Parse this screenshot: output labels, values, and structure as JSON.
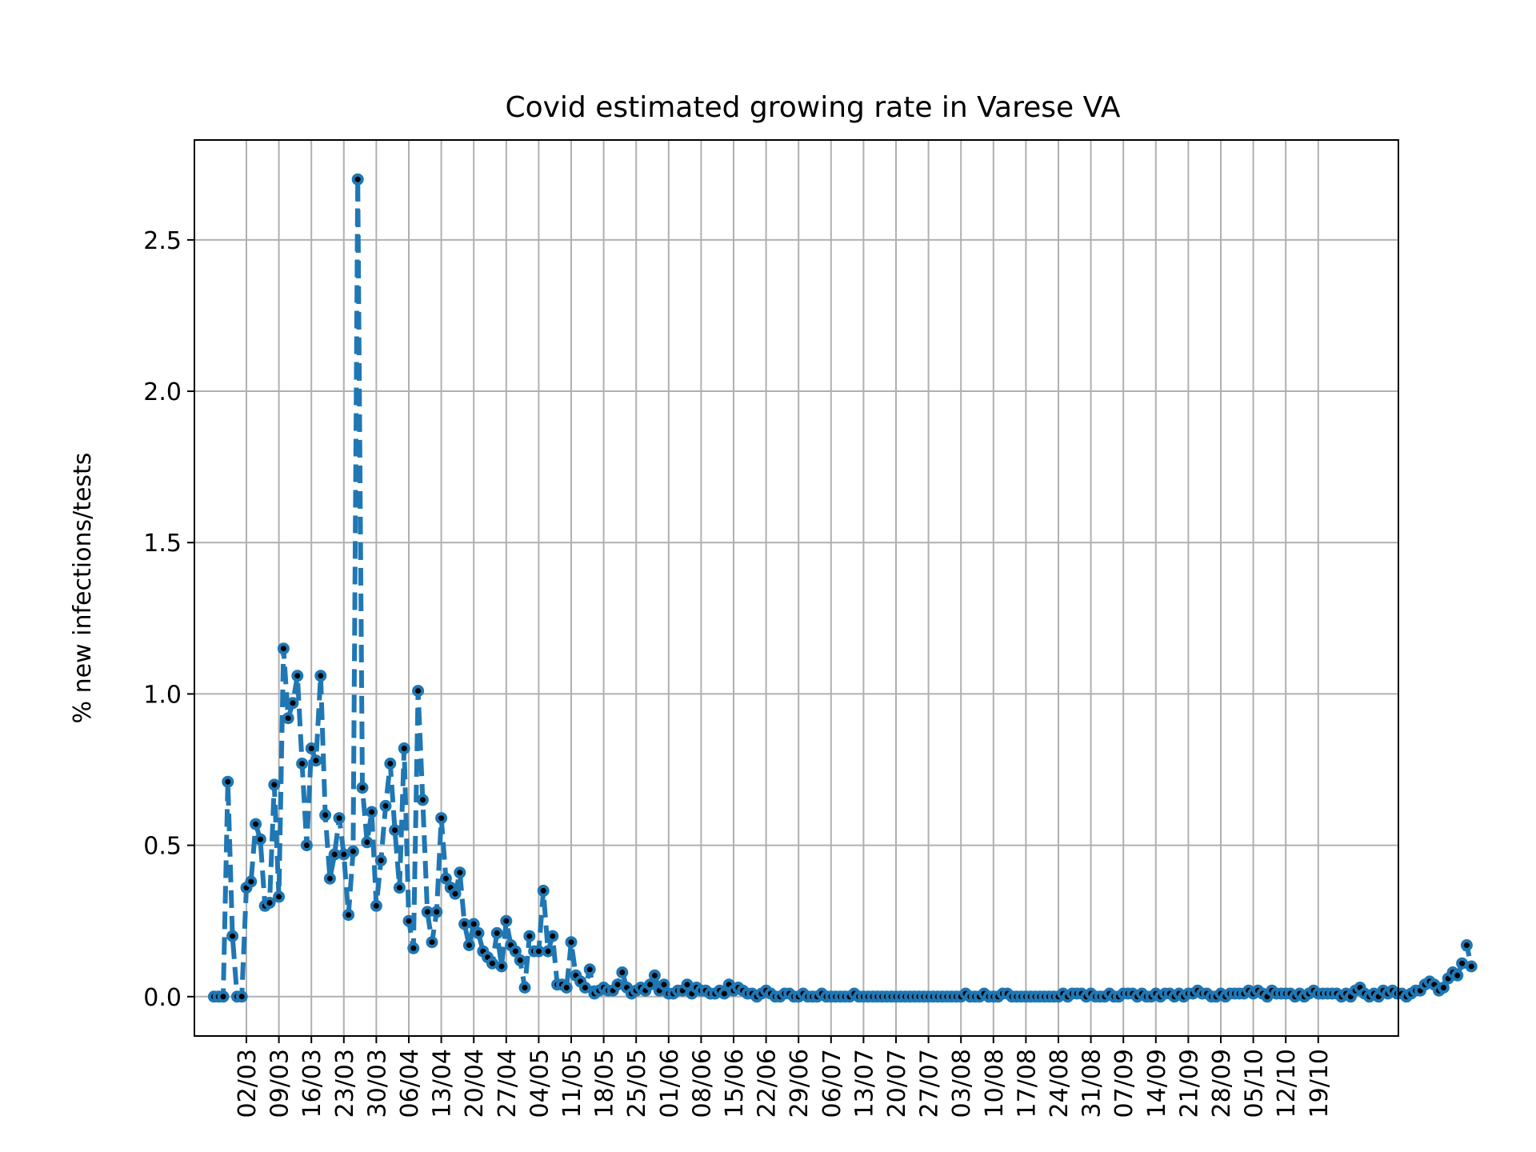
{
  "chart_data": {
    "type": "line",
    "title": "Covid estimated growing rate in Varese VA",
    "xlabel": "",
    "ylabel": "% new infections/tests",
    "grid": true,
    "legend": "none",
    "ylim": [
      -0.13,
      2.83
    ],
    "yticks": [
      0.0,
      0.5,
      1.0,
      1.5,
      2.0,
      2.5
    ],
    "ytick_labels": [
      "0.0",
      "0.5",
      "1.0",
      "1.5",
      "2.0",
      "2.5"
    ],
    "x_start": "24/02",
    "x_end": "20/10",
    "xticks": [
      "02/03",
      "09/03",
      "16/03",
      "23/03",
      "30/03",
      "06/04",
      "13/04",
      "20/04",
      "27/04",
      "04/05",
      "11/05",
      "18/05",
      "25/05",
      "01/06",
      "08/06",
      "15/06",
      "22/06",
      "29/06",
      "06/07",
      "13/07",
      "20/07",
      "27/07",
      "03/08",
      "10/08",
      "17/08",
      "24/08",
      "31/08",
      "07/09",
      "14/09",
      "21/09",
      "28/09",
      "05/10",
      "12/10",
      "19/10"
    ],
    "series": [
      {
        "name": "",
        "color": "#1f77b4",
        "marker_color": "#000000",
        "values": [
          0.0,
          0.0,
          0.0,
          0.71,
          0.2,
          0.0,
          0.0,
          0.36,
          0.38,
          0.57,
          0.52,
          0.3,
          0.31,
          0.7,
          0.33,
          1.15,
          0.92,
          0.97,
          1.06,
          0.77,
          0.5,
          0.82,
          0.78,
          1.06,
          0.6,
          0.39,
          0.47,
          0.59,
          0.47,
          0.27,
          0.48,
          2.7,
          0.69,
          0.51,
          0.61,
          0.3,
          0.45,
          0.63,
          0.77,
          0.55,
          0.36,
          0.82,
          0.25,
          0.16,
          1.01,
          0.65,
          0.28,
          0.18,
          0.28,
          0.59,
          0.39,
          0.36,
          0.34,
          0.41,
          0.24,
          0.17,
          0.24,
          0.21,
          0.15,
          0.13,
          0.11,
          0.21,
          0.1,
          0.25,
          0.17,
          0.15,
          0.12,
          0.03,
          0.2,
          0.15,
          0.15,
          0.35,
          0.15,
          0.2,
          0.04,
          0.04,
          0.03,
          0.18,
          0.07,
          0.05,
          0.03,
          0.09,
          0.01,
          0.02,
          0.03,
          0.02,
          0.02,
          0.04,
          0.08,
          0.03,
          0.01,
          0.02,
          0.03,
          0.02,
          0.04,
          0.07,
          0.02,
          0.04,
          0.01,
          0.01,
          0.02,
          0.02,
          0.04,
          0.01,
          0.03,
          0.02,
          0.02,
          0.01,
          0.01,
          0.02,
          0.01,
          0.04,
          0.02,
          0.03,
          0.02,
          0.01,
          0.01,
          0.0,
          0.01,
          0.02,
          0.01,
          0.0,
          0.0,
          0.01,
          0.01,
          0.0,
          0.0,
          0.01,
          0.0,
          0.0,
          0.0,
          0.01,
          0.0,
          0.0,
          0.0,
          0.0,
          0.0,
          0.0,
          0.01,
          0.0,
          0.0,
          0.0,
          0.0,
          0.0,
          0.0,
          0.0,
          0.0,
          0.0,
          0.0,
          0.0,
          0.0,
          0.0,
          0.0,
          0.0,
          0.0,
          0.0,
          0.0,
          0.0,
          0.0,
          0.0,
          0.0,
          0.0,
          0.01,
          0.0,
          0.0,
          0.0,
          0.01,
          0.0,
          0.0,
          0.0,
          0.01,
          0.01,
          0.0,
          0.0,
          0.0,
          0.0,
          0.0,
          0.0,
          0.0,
          0.0,
          0.0,
          0.0,
          0.0,
          0.01,
          0.0,
          0.01,
          0.01,
          0.01,
          0.0,
          0.01,
          0.0,
          0.0,
          0.0,
          0.01,
          0.0,
          0.0,
          0.01,
          0.01,
          0.01,
          0.0,
          0.01,
          0.0,
          0.0,
          0.01,
          0.0,
          0.01,
          0.01,
          0.0,
          0.01,
          0.0,
          0.01,
          0.01,
          0.02,
          0.01,
          0.01,
          0.0,
          0.0,
          0.01,
          0.0,
          0.01,
          0.01,
          0.01,
          0.01,
          0.02,
          0.01,
          0.02,
          0.01,
          0.0,
          0.02,
          0.01,
          0.01,
          0.01,
          0.01,
          0.0,
          0.01,
          0.0,
          0.01,
          0.02,
          0.01,
          0.01,
          0.01,
          0.01,
          0.01,
          0.0,
          0.01,
          0.0,
          0.02,
          0.03,
          0.01,
          0.0,
          0.01,
          0.0,
          0.02,
          0.01,
          0.02,
          0.01,
          0.01,
          0.0,
          0.01,
          0.02,
          0.02,
          0.04,
          0.05,
          0.04,
          0.02,
          0.03,
          0.06,
          0.08,
          0.07,
          0.11,
          0.17,
          0.1
        ]
      }
    ]
  }
}
